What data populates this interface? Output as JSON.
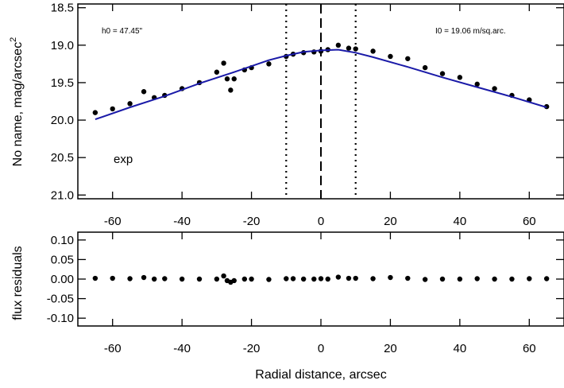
{
  "chart_data": [
    {
      "type": "scatter",
      "xlabel": "",
      "ylabel": "No name, mag/arcsec",
      "ylabel_sup": "2",
      "xlim": [
        -70,
        70
      ],
      "ylim": [
        21.05,
        18.45
      ],
      "x_ticks": [
        -60,
        -40,
        -20,
        0,
        20,
        40,
        60
      ],
      "x_tick_labels": [
        "-60",
        "-40",
        "-20",
        "0",
        "20",
        "40",
        "60"
      ],
      "y_ticks": [
        18.5,
        19.0,
        19.5,
        20.0,
        20.5,
        21.0
      ],
      "y_tick_labels": [
        "18.5",
        "19.0",
        "19.5",
        "20.0",
        "20.5",
        "21.0"
      ],
      "annotations": {
        "h0": "h0 =  47.45\"",
        "i0": "I0 =  19.06 m/sq.arc.",
        "model": "exp"
      },
      "vertical_lines": [
        {
          "x": -10,
          "style": "dotted"
        },
        {
          "x": 0,
          "style": "dashed"
        },
        {
          "x": 10,
          "style": "dotted"
        }
      ],
      "series": [
        {
          "kind": "points",
          "color": "#000000",
          "x": [
            -65,
            -60,
            -55,
            -51,
            -48,
            -45,
            -40,
            -35,
            -30,
            -28,
            -27,
            -26,
            -25,
            -22,
            -20,
            -15,
            -10,
            -8,
            -5,
            -2,
            0,
            2,
            5,
            8,
            10,
            15,
            20,
            25,
            30,
            35,
            40,
            45,
            50,
            55,
            60,
            65
          ],
          "y": [
            19.9,
            19.85,
            19.78,
            19.62,
            19.7,
            19.67,
            19.58,
            19.5,
            19.36,
            19.24,
            19.45,
            19.6,
            19.45,
            19.33,
            19.3,
            19.25,
            19.15,
            19.12,
            19.1,
            19.09,
            19.08,
            19.06,
            19.0,
            19.04,
            19.05,
            19.08,
            19.15,
            19.18,
            19.3,
            19.38,
            19.43,
            19.52,
            19.58,
            19.67,
            19.73,
            19.82
          ]
        },
        {
          "kind": "line",
          "color": "#1a1aa8",
          "x": [
            -65,
            -55,
            -45,
            -35,
            -25,
            -15,
            -10,
            -5,
            0,
            5,
            10,
            15,
            25,
            35,
            45,
            55,
            65
          ],
          "y": [
            19.99,
            19.83,
            19.68,
            19.51,
            19.36,
            19.2,
            19.14,
            19.09,
            19.07,
            19.06,
            19.1,
            19.16,
            19.29,
            19.43,
            19.56,
            19.69,
            19.83
          ]
        }
      ]
    },
    {
      "type": "scatter",
      "xlabel": "Radial distance, arcsec",
      "ylabel": "flux residuals",
      "xlim": [
        -70,
        70
      ],
      "ylim": [
        -0.12,
        0.12
      ],
      "x_ticks": [
        -60,
        -40,
        -20,
        0,
        20,
        40,
        60
      ],
      "x_tick_labels": [
        "-60",
        "-40",
        "-20",
        "0",
        "20",
        "40",
        "60"
      ],
      "y_ticks": [
        0.1,
        0.05,
        0.0,
        -0.05,
        -0.1
      ],
      "y_tick_labels": [
        "0.10",
        "0.05",
        "0.00",
        "-0.05",
        "-0.10"
      ],
      "series": [
        {
          "kind": "points",
          "color": "#000000",
          "x": [
            -65,
            -60,
            -55,
            -51,
            -48,
            -45,
            -40,
            -35,
            -30,
            -28,
            -27,
            -26,
            -25,
            -22,
            -20,
            -15,
            -10,
            -8,
            -5,
            -2,
            0,
            2,
            5,
            8,
            10,
            15,
            20,
            25,
            30,
            35,
            40,
            45,
            50,
            55,
            60,
            65
          ],
          "y": [
            0.002,
            0.002,
            0.001,
            0.004,
            0.0,
            0.001,
            0.0,
            0.0,
            0.0,
            0.008,
            -0.004,
            -0.008,
            -0.004,
            0.0,
            0.0,
            -0.001,
            0.001,
            0.001,
            0.0,
            0.0,
            0.001,
            0.0,
            0.005,
            0.002,
            0.002,
            0.001,
            0.004,
            0.002,
            -0.001,
            0.0,
            0.0,
            0.001,
            0.0,
            0.0,
            0.001,
            0.001
          ]
        }
      ]
    }
  ]
}
